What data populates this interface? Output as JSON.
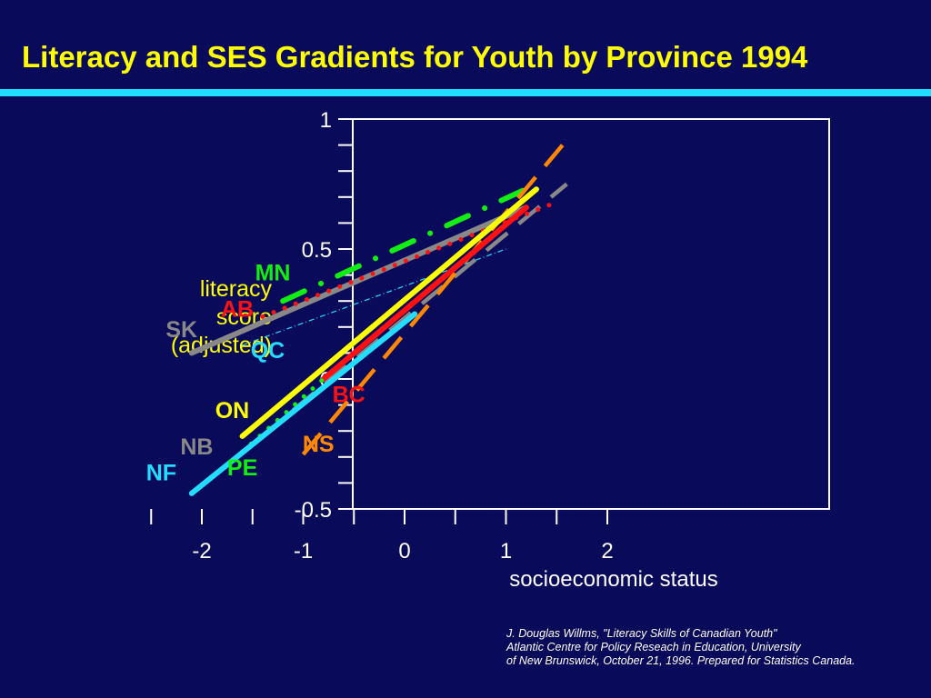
{
  "title": "Literacy and SES Gradients for Youth by Province 1994",
  "accent_color": "#22ddff",
  "background_color": "#0a0a5a",
  "credit": [
    "J. Douglas Willms, \"Literacy Skills of Canadian Youth\"",
    "Atlantic Centre for Policy Reseach in Education, University",
    "of New Brunswick, October 21, 1996. Prepared for Statistics Canada."
  ],
  "chart_data": {
    "type": "line",
    "title": "Literacy and SES Gradients for Youth by Province 1994",
    "xlabel": "socioeconomic status",
    "ylabel": "literacy\nscore\n(adjusted)",
    "xlim": [
      -2.5,
      2.2
    ],
    "ylim": [
      -0.5,
      1.0
    ],
    "x_ticks": [
      -2,
      -1,
      0,
      1,
      2
    ],
    "x_tick_labels": [
      "-2",
      "-1",
      "0",
      "1",
      "2"
    ],
    "y_ticks": [
      -0.5,
      0,
      0.5,
      1
    ],
    "y_tick_labels": [
      "-0.5",
      "0",
      "0.5",
      "1"
    ],
    "grid": false,
    "series": [
      {
        "name": "SK",
        "color": "#888888",
        "style": "solid",
        "x": [
          -2.1,
          1.2
        ],
        "y": [
          0.1,
          0.66
        ],
        "label_x": -2.2,
        "label_y": 0.16
      },
      {
        "name": "AB",
        "color": "#ff1111",
        "style": "dotted",
        "x": [
          -1.4,
          1.5
        ],
        "y": [
          0.24,
          0.68
        ],
        "label_x": -1.65,
        "label_y": 0.24
      },
      {
        "name": "MN",
        "color": "#11ee11",
        "style": "dash-dot",
        "x": [
          -1.2,
          1.25
        ],
        "y": [
          0.3,
          0.74
        ],
        "label_x": -1.3,
        "label_y": 0.38
      },
      {
        "name": "QC",
        "color": "#22ddff",
        "style": "thin-dash-dot",
        "x": [
          -1.6,
          1.0
        ],
        "y": [
          0.13,
          0.5
        ],
        "label_x": -1.35,
        "label_y": 0.08
      },
      {
        "name": "ON",
        "color": "#ffff00",
        "style": "solid",
        "x": [
          -1.6,
          1.3
        ],
        "y": [
          -0.22,
          0.73
        ],
        "label_x": -1.7,
        "label_y": -0.15
      },
      {
        "name": "BC",
        "color": "#ff1111",
        "style": "solid",
        "x": [
          -0.8,
          1.2
        ],
        "y": [
          0.0,
          0.66
        ],
        "label_x": -0.55,
        "label_y": -0.09
      },
      {
        "name": "NS",
        "color": "#ff8800",
        "style": "dashed",
        "x": [
          -1.0,
          1.58
        ],
        "y": [
          -0.29,
          0.91
        ],
        "label_x": -0.85,
        "label_y": -0.28
      },
      {
        "name": "NB",
        "color": "#888888",
        "style": "dashed",
        "x": [
          -1.1,
          1.6
        ],
        "y": [
          -0.12,
          0.75
        ],
        "label_x": -2.05,
        "label_y": -0.29
      },
      {
        "name": "PE",
        "color": "#11ee11",
        "style": "dotted",
        "x": [
          -1.6,
          -0.8
        ],
        "y": [
          -0.28,
          0.0
        ],
        "label_x": -1.6,
        "label_y": -0.37
      },
      {
        "name": "NF",
        "color": "#22ddff",
        "style": "solid",
        "x": [
          -2.1,
          0.1
        ],
        "y": [
          -0.44,
          0.25
        ],
        "label_x": -2.4,
        "label_y": -0.39
      }
    ]
  }
}
